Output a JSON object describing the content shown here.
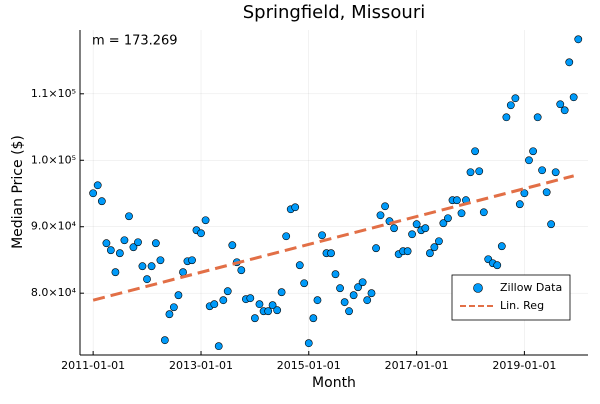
{
  "chart_data": {
    "type": "scatter",
    "title": "Springfield, Missouri",
    "xlabel": "Month",
    "ylabel": "Median Price ($)",
    "annotation": "m = 173.269",
    "xlim": [
      "2010-10-04",
      "2020-03-07"
    ],
    "ylim": [
      70700,
      119600
    ],
    "xticks": [
      "2011-01-01",
      "2013-01-01",
      "2015-01-01",
      "2017-01-01",
      "2019-01-01"
    ],
    "yticks": [
      {
        "value": 80000,
        "label": "8.0×10⁴"
      },
      {
        "value": 90000,
        "label": "9.0×10⁴"
      },
      {
        "value": 100000,
        "label": "1.0×10⁵"
      },
      {
        "value": 110000,
        "label": "1.1×10⁵"
      }
    ],
    "grid": true,
    "legend": "bottom right",
    "series": [
      {
        "name": "Zillow Data",
        "type": "scatter",
        "color": "#009af9",
        "x": [
          "2011-01-01",
          "2011-02-01",
          "2011-03-01",
          "2011-04-01",
          "2011-05-01",
          "2011-06-01",
          "2011-07-01",
          "2011-08-01",
          "2011-09-01",
          "2011-10-01",
          "2011-11-01",
          "2011-12-01",
          "2012-01-01",
          "2012-02-01",
          "2012-03-01",
          "2012-04-01",
          "2012-05-01",
          "2012-06-01",
          "2012-07-01",
          "2012-08-01",
          "2012-09-01",
          "2012-10-01",
          "2012-11-01",
          "2012-12-01",
          "2013-01-01",
          "2013-02-01",
          "2013-03-01",
          "2013-04-01",
          "2013-05-01",
          "2013-06-01",
          "2013-07-01",
          "2013-08-01",
          "2013-09-01",
          "2013-10-01",
          "2013-11-01",
          "2013-12-01",
          "2014-01-01",
          "2014-02-01",
          "2014-03-01",
          "2014-04-01",
          "2014-05-01",
          "2014-06-01",
          "2014-07-01",
          "2014-08-01",
          "2014-09-01",
          "2014-10-01",
          "2014-11-01",
          "2014-12-01",
          "2015-01-01",
          "2015-02-01",
          "2015-03-01",
          "2015-04-01",
          "2015-05-01",
          "2015-06-01",
          "2015-07-01",
          "2015-08-01",
          "2015-09-01",
          "2015-10-01",
          "2015-11-01",
          "2015-12-01",
          "2016-01-01",
          "2016-02-01",
          "2016-03-01",
          "2016-04-01",
          "2016-05-01",
          "2016-06-01",
          "2016-07-01",
          "2016-08-01",
          "2016-09-01",
          "2016-10-01",
          "2016-11-01",
          "2016-12-01",
          "2017-01-01",
          "2017-02-01",
          "2017-03-01",
          "2017-04-01",
          "2017-05-01",
          "2017-06-01",
          "2017-07-01",
          "2017-08-01",
          "2017-09-01",
          "2017-10-01",
          "2017-11-01",
          "2017-12-01",
          "2018-01-01",
          "2018-02-01",
          "2018-03-01",
          "2018-04-01",
          "2018-05-01",
          "2018-06-01",
          "2018-07-01",
          "2018-08-01",
          "2018-09-01",
          "2018-10-01",
          "2018-11-01",
          "2018-12-01",
          "2019-01-01",
          "2019-02-01",
          "2019-03-01",
          "2019-04-01",
          "2019-05-01",
          "2019-06-01",
          "2019-07-01",
          "2019-08-01",
          "2019-09-01",
          "2019-10-01",
          "2019-11-01",
          "2019-12-01",
          "2020-01-01"
        ],
        "values": [
          95040,
          96240,
          93840,
          87520,
          86470,
          83160,
          86020,
          87970,
          91580,
          86920,
          87670,
          84060,
          82110,
          84060,
          87520,
          84960,
          72930,
          76840,
          77890,
          79700,
          83160,
          84810,
          84960,
          89480,
          89020,
          90980,
          78040,
          78350,
          72030,
          78950,
          80300,
          87220,
          84660,
          83460,
          79100,
          79250,
          76240,
          78350,
          77290,
          77290,
          78200,
          77440,
          80150,
          88570,
          92630,
          92930,
          84210,
          81500,
          72480,
          76240,
          78950,
          88720,
          86020,
          86020,
          82860,
          80750,
          78650,
          77290,
          79700,
          80900,
          81650,
          78950,
          80000,
          86770,
          91730,
          93080,
          90830,
          89780,
          85870,
          86320,
          86320,
          88870,
          90380,
          89480,
          89780,
          86020,
          86920,
          87820,
          90530,
          91280,
          93990,
          93990,
          92030,
          93990,
          98200,
          101360,
          98350,
          92180,
          85110,
          84510,
          84210,
          87070,
          106470,
          108280,
          109330,
          93390,
          95040,
          100000,
          101360,
          106470,
          98500,
          95190,
          90380,
          98200,
          108430,
          107520,
          114740,
          109480,
          118200
        ]
      },
      {
        "name": "Lin. Reg",
        "type": "line",
        "color": "#e26f46",
        "x": [
          "2011-01-01",
          "2019-12-01"
        ],
        "values": [
          78950,
          97650
        ]
      }
    ]
  }
}
